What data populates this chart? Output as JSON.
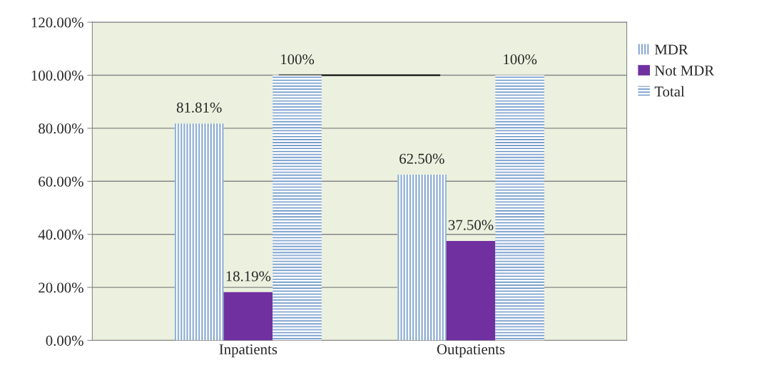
{
  "chart_data": {
    "type": "bar",
    "categories": [
      "Inpatients",
      "Outpatients"
    ],
    "series": [
      {
        "name": "MDR",
        "color": "#4f81bd",
        "values": [
          81.81,
          62.5
        ],
        "value_labels": [
          "81.81%",
          "62.50%"
        ]
      },
      {
        "name": "Not MDR",
        "color": "#7030a0",
        "values": [
          18.19,
          37.5
        ],
        "value_labels": [
          "18.19%",
          "37.50%"
        ]
      },
      {
        "name": "Total",
        "color": "#4f81bd",
        "values": [
          100,
          100
        ],
        "value_labels": [
          "100%",
          "100%"
        ]
      }
    ],
    "ylim": [
      0,
      120
    ],
    "yticks": [
      {
        "value": 0,
        "label": "0.00%"
      },
      {
        "value": 20,
        "label": "20.00%"
      },
      {
        "value": 40,
        "label": "40.00%"
      },
      {
        "value": 60,
        "label": "60.00%"
      },
      {
        "value": 80,
        "label": "80.00%"
      },
      {
        "value": 100,
        "label": "100.00%"
      },
      {
        "value": 120,
        "label": "120.00%"
      }
    ],
    "ref_lines": [
      {
        "axis": "y",
        "value": 100,
        "color": "#000000"
      }
    ],
    "grid": "y",
    "legend": "top right"
  }
}
